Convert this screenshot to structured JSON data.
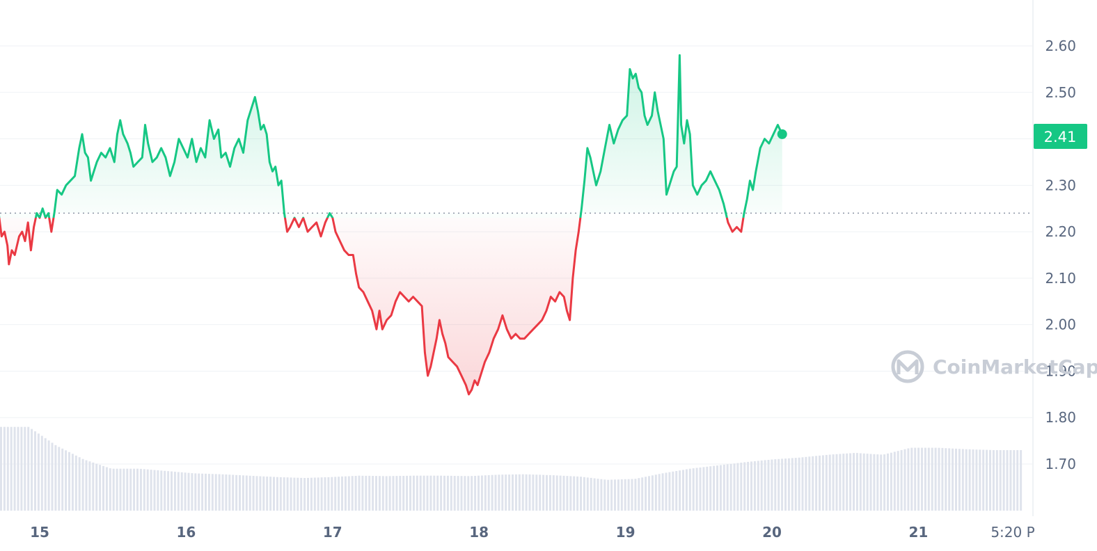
{
  "chart_data": {
    "type": "area",
    "title": "",
    "xlabel": "",
    "ylabel": "",
    "ylim": [
      1.61,
      2.69
    ],
    "yticks": [
      "2.60",
      "2.50",
      "2.40",
      "2.30",
      "2.20",
      "2.10",
      "2.00",
      "1.90",
      "1.80",
      "1.70"
    ],
    "xticks": [
      "15",
      "16",
      "17",
      "18",
      "19",
      "20",
      "21",
      "5:20 P"
    ],
    "baseline": 2.24,
    "current_price_label": "2.41",
    "up_color": "#16c784",
    "down_color": "#ea3943",
    "x_range": [
      14.72,
      21.74
    ],
    "price_series": [
      [
        14.72,
        2.24
      ],
      [
        14.74,
        2.19
      ],
      [
        14.76,
        2.2
      ],
      [
        14.78,
        2.17
      ],
      [
        14.79,
        2.13
      ],
      [
        14.81,
        2.16
      ],
      [
        14.83,
        2.15
      ],
      [
        14.86,
        2.19
      ],
      [
        14.88,
        2.2
      ],
      [
        14.9,
        2.18
      ],
      [
        14.92,
        2.22
      ],
      [
        14.94,
        2.16
      ],
      [
        14.96,
        2.21
      ],
      [
        14.98,
        2.24
      ],
      [
        15.0,
        2.23
      ],
      [
        15.02,
        2.25
      ],
      [
        15.04,
        2.23
      ],
      [
        15.06,
        2.24
      ],
      [
        15.08,
        2.2
      ],
      [
        15.1,
        2.24
      ],
      [
        15.12,
        2.29
      ],
      [
        15.15,
        2.28
      ],
      [
        15.18,
        2.3
      ],
      [
        15.21,
        2.31
      ],
      [
        15.24,
        2.32
      ],
      [
        15.27,
        2.38
      ],
      [
        15.29,
        2.41
      ],
      [
        15.31,
        2.37
      ],
      [
        15.33,
        2.36
      ],
      [
        15.35,
        2.31
      ],
      [
        15.37,
        2.33
      ],
      [
        15.39,
        2.35
      ],
      [
        15.42,
        2.37
      ],
      [
        15.45,
        2.36
      ],
      [
        15.48,
        2.38
      ],
      [
        15.51,
        2.35
      ],
      [
        15.53,
        2.41
      ],
      [
        15.55,
        2.44
      ],
      [
        15.57,
        2.41
      ],
      [
        15.6,
        2.39
      ],
      [
        15.62,
        2.37
      ],
      [
        15.64,
        2.34
      ],
      [
        15.67,
        2.35
      ],
      [
        15.7,
        2.36
      ],
      [
        15.72,
        2.43
      ],
      [
        15.74,
        2.39
      ],
      [
        15.77,
        2.35
      ],
      [
        15.8,
        2.36
      ],
      [
        15.83,
        2.38
      ],
      [
        15.86,
        2.36
      ],
      [
        15.89,
        2.32
      ],
      [
        15.92,
        2.35
      ],
      [
        15.95,
        2.4
      ],
      [
        15.98,
        2.38
      ],
      [
        16.01,
        2.36
      ],
      [
        16.04,
        2.4
      ],
      [
        16.07,
        2.35
      ],
      [
        16.1,
        2.38
      ],
      [
        16.13,
        2.36
      ],
      [
        16.16,
        2.44
      ],
      [
        16.19,
        2.4
      ],
      [
        16.22,
        2.42
      ],
      [
        16.24,
        2.36
      ],
      [
        16.27,
        2.37
      ],
      [
        16.3,
        2.34
      ],
      [
        16.33,
        2.38
      ],
      [
        16.36,
        2.4
      ],
      [
        16.39,
        2.37
      ],
      [
        16.42,
        2.44
      ],
      [
        16.45,
        2.47
      ],
      [
        16.47,
        2.49
      ],
      [
        16.49,
        2.46
      ],
      [
        16.51,
        2.42
      ],
      [
        16.53,
        2.43
      ],
      [
        16.55,
        2.41
      ],
      [
        16.57,
        2.35
      ],
      [
        16.59,
        2.33
      ],
      [
        16.61,
        2.34
      ],
      [
        16.63,
        2.3
      ],
      [
        16.65,
        2.31
      ],
      [
        16.67,
        2.24
      ],
      [
        16.69,
        2.2
      ],
      [
        16.71,
        2.21
      ],
      [
        16.74,
        2.23
      ],
      [
        16.77,
        2.21
      ],
      [
        16.8,
        2.23
      ],
      [
        16.83,
        2.2
      ],
      [
        16.86,
        2.21
      ],
      [
        16.89,
        2.22
      ],
      [
        16.92,
        2.19
      ],
      [
        16.95,
        2.22
      ],
      [
        16.98,
        2.24
      ],
      [
        17.0,
        2.23
      ],
      [
        17.02,
        2.2
      ],
      [
        17.05,
        2.18
      ],
      [
        17.08,
        2.16
      ],
      [
        17.11,
        2.15
      ],
      [
        17.14,
        2.15
      ],
      [
        17.16,
        2.11
      ],
      [
        17.18,
        2.08
      ],
      [
        17.21,
        2.07
      ],
      [
        17.24,
        2.05
      ],
      [
        17.27,
        2.03
      ],
      [
        17.3,
        1.99
      ],
      [
        17.32,
        2.03
      ],
      [
        17.34,
        1.99
      ],
      [
        17.37,
        2.01
      ],
      [
        17.4,
        2.02
      ],
      [
        17.43,
        2.05
      ],
      [
        17.46,
        2.07
      ],
      [
        17.49,
        2.06
      ],
      [
        17.52,
        2.05
      ],
      [
        17.55,
        2.06
      ],
      [
        17.58,
        2.05
      ],
      [
        17.61,
        2.04
      ],
      [
        17.63,
        1.94
      ],
      [
        17.65,
        1.89
      ],
      [
        17.67,
        1.91
      ],
      [
        17.69,
        1.94
      ],
      [
        17.71,
        1.97
      ],
      [
        17.73,
        2.01
      ],
      [
        17.75,
        1.98
      ],
      [
        17.77,
        1.96
      ],
      [
        17.79,
        1.93
      ],
      [
        17.82,
        1.92
      ],
      [
        17.85,
        1.91
      ],
      [
        17.88,
        1.89
      ],
      [
        17.91,
        1.87
      ],
      [
        17.93,
        1.85
      ],
      [
        17.95,
        1.86
      ],
      [
        17.97,
        1.88
      ],
      [
        17.99,
        1.87
      ],
      [
        18.01,
        1.89
      ],
      [
        18.04,
        1.92
      ],
      [
        18.07,
        1.94
      ],
      [
        18.1,
        1.97
      ],
      [
        18.13,
        1.99
      ],
      [
        18.16,
        2.02
      ],
      [
        18.19,
        1.99
      ],
      [
        18.22,
        1.97
      ],
      [
        18.25,
        1.98
      ],
      [
        18.28,
        1.97
      ],
      [
        18.31,
        1.97
      ],
      [
        18.34,
        1.98
      ],
      [
        18.37,
        1.99
      ],
      [
        18.4,
        2.0
      ],
      [
        18.43,
        2.01
      ],
      [
        18.46,
        2.03
      ],
      [
        18.49,
        2.06
      ],
      [
        18.52,
        2.05
      ],
      [
        18.55,
        2.07
      ],
      [
        18.58,
        2.06
      ],
      [
        18.6,
        2.03
      ],
      [
        18.62,
        2.01
      ],
      [
        18.64,
        2.1
      ],
      [
        18.66,
        2.16
      ],
      [
        18.68,
        2.2
      ],
      [
        18.7,
        2.25
      ],
      [
        18.72,
        2.31
      ],
      [
        18.74,
        2.38
      ],
      [
        18.76,
        2.36
      ],
      [
        18.78,
        2.33
      ],
      [
        18.8,
        2.3
      ],
      [
        18.83,
        2.33
      ],
      [
        18.86,
        2.38
      ],
      [
        18.89,
        2.43
      ],
      [
        18.92,
        2.39
      ],
      [
        18.95,
        2.42
      ],
      [
        18.98,
        2.44
      ],
      [
        19.01,
        2.45
      ],
      [
        19.03,
        2.55
      ],
      [
        19.05,
        2.53
      ],
      [
        19.07,
        2.54
      ],
      [
        19.09,
        2.51
      ],
      [
        19.11,
        2.5
      ],
      [
        19.13,
        2.45
      ],
      [
        19.15,
        2.43
      ],
      [
        19.18,
        2.45
      ],
      [
        19.2,
        2.5
      ],
      [
        19.22,
        2.46
      ],
      [
        19.24,
        2.43
      ],
      [
        19.26,
        2.4
      ],
      [
        19.28,
        2.28
      ],
      [
        19.3,
        2.3
      ],
      [
        19.33,
        2.33
      ],
      [
        19.35,
        2.34
      ],
      [
        19.37,
        2.58
      ],
      [
        19.38,
        2.43
      ],
      [
        19.4,
        2.39
      ],
      [
        19.42,
        2.44
      ],
      [
        19.44,
        2.41
      ],
      [
        19.46,
        2.3
      ],
      [
        19.49,
        2.28
      ],
      [
        19.52,
        2.3
      ],
      [
        19.55,
        2.31
      ],
      [
        19.58,
        2.33
      ],
      [
        19.61,
        2.31
      ],
      [
        19.64,
        2.29
      ],
      [
        19.67,
        2.26
      ],
      [
        19.7,
        2.22
      ],
      [
        19.73,
        2.2
      ],
      [
        19.76,
        2.21
      ],
      [
        19.79,
        2.2
      ],
      [
        19.81,
        2.24
      ],
      [
        19.83,
        2.27
      ],
      [
        19.85,
        2.31
      ],
      [
        19.87,
        2.29
      ],
      [
        19.89,
        2.33
      ],
      [
        19.92,
        2.38
      ],
      [
        19.95,
        2.4
      ],
      [
        19.98,
        2.39
      ],
      [
        20.01,
        2.41
      ],
      [
        20.04,
        2.43
      ],
      [
        20.07,
        2.41
      ]
    ],
    "volume_band": {
      "description": "",
      "values": [
        1.78,
        1.78,
        1.74,
        1.71,
        1.69,
        1.69,
        1.685,
        1.68,
        1.678,
        1.675,
        1.672,
        1.67,
        1.672,
        1.675,
        1.674,
        1.675,
        1.675,
        1.674,
        1.677,
        1.678,
        1.676,
        1.673,
        1.666,
        1.668,
        1.68,
        1.69,
        1.697,
        1.704,
        1.71,
        1.714,
        1.72,
        1.724,
        1.72,
        1.735,
        1.735,
        1.732,
        1.73,
        1.73
      ]
    }
  }
}
